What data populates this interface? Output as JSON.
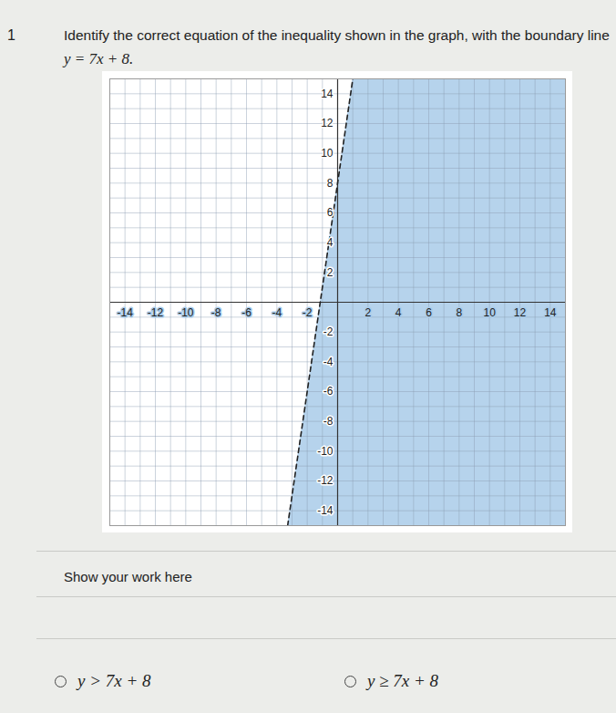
{
  "number": "1",
  "question": "Identify the correct equation of the inequality shown in the graph, with the boundary line",
  "boundary_equation": "y = 7x + 8.",
  "chart_data": {
    "type": "line",
    "x": [
      -3.29,
      1
    ],
    "values": [
      -15,
      15
    ],
    "line_style": "dashed",
    "color": "#a9cbe9",
    "xlim": [
      -15,
      15
    ],
    "ylim": [
      -15,
      15
    ],
    "xticks": [
      -14,
      -12,
      -10,
      -8,
      -6,
      -4,
      -2,
      2,
      4,
      6,
      8,
      10,
      12,
      14
    ],
    "yticks": [
      -14,
      -12,
      -10,
      -8,
      -6,
      -4,
      -2,
      2,
      4,
      6,
      8,
      10,
      12,
      14
    ],
    "grid": true
  },
  "work_prompt": "Show your work here",
  "options": [
    "y > 7x + 8",
    "y ≥ 7x + 8"
  ]
}
